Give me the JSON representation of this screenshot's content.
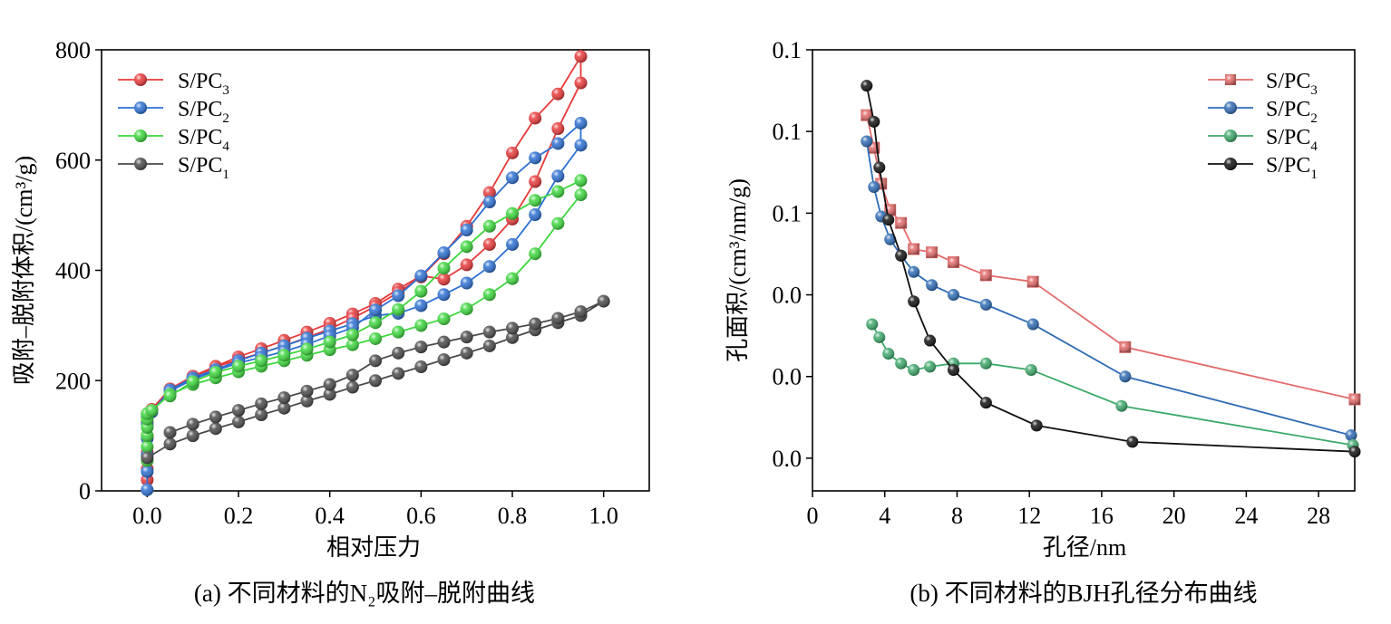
{
  "chart_data": [
    {
      "type": "line",
      "caption": "(a) 不同材料的N₂吸附–脱附曲线",
      "xlabel": "相对压力",
      "ylabel": "吸附–脱附体积/(cm³/g)",
      "xlim": [
        -0.1,
        1.1
      ],
      "ylim": [
        0,
        800
      ],
      "x_ticks": [
        {
          "v": 0.0,
          "label": "0.0"
        },
        {
          "v": 0.2,
          "label": "0.2"
        },
        {
          "v": 0.4,
          "label": "0.4"
        },
        {
          "v": 0.6,
          "label": "0.6"
        },
        {
          "v": 0.8,
          "label": "0.8"
        },
        {
          "v": 1.0,
          "label": "1.0"
        }
      ],
      "y_ticks": [
        {
          "v": 0,
          "label": "0"
        },
        {
          "v": 200,
          "label": "200"
        },
        {
          "v": 400,
          "label": "400"
        },
        {
          "v": 600,
          "label": "600"
        },
        {
          "v": 800,
          "label": "800"
        }
      ],
      "legend": "top-left",
      "marker": "sphere",
      "series": [
        {
          "name_base": "S/PC",
          "name_sub": "3",
          "color": "#e8393a",
          "x": [
            0.0,
            0.0,
            0.0,
            0.0,
            0.0,
            0.0,
            0.01,
            0.05,
            0.1,
            0.15,
            0.2,
            0.25,
            0.3,
            0.35,
            0.4,
            0.45,
            0.5,
            0.55,
            0.6,
            0.65,
            0.7,
            0.75,
            0.8,
            0.85,
            0.9,
            0.95,
            0.95,
            0.9,
            0.85,
            0.8,
            0.75,
            0.7,
            0.65,
            0.6,
            0.55,
            0.5,
            0.45,
            0.4,
            0.35,
            0.3,
            0.25,
            0.2,
            0.15,
            0.1,
            0.05
          ],
          "y": [
            20,
            40,
            70,
            100,
            125,
            140,
            148,
            185,
            208,
            226,
            243,
            258,
            273,
            288,
            304,
            321,
            340,
            366,
            390,
            384,
            410,
            447,
            493,
            561,
            657,
            740,
            788,
            720,
            676,
            613,
            541,
            480,
            430,
            388,
            360,
            335,
            313,
            294,
            278,
            263,
            250,
            238,
            225,
            205,
            184
          ]
        },
        {
          "name_base": "S/PC",
          "name_sub": "2",
          "color": "#2d70d3",
          "x": [
            0.0,
            0.0,
            0.0,
            0.0,
            0.0,
            0.0,
            0.01,
            0.05,
            0.1,
            0.15,
            0.2,
            0.25,
            0.3,
            0.35,
            0.4,
            0.45,
            0.5,
            0.55,
            0.6,
            0.65,
            0.7,
            0.75,
            0.8,
            0.85,
            0.9,
            0.95,
            0.95,
            0.9,
            0.85,
            0.8,
            0.75,
            0.7,
            0.65,
            0.6,
            0.55,
            0.5,
            0.45,
            0.4,
            0.35,
            0.3,
            0.25,
            0.2,
            0.15,
            0.1,
            0.05
          ],
          "y": [
            2,
            35,
            65,
            95,
            120,
            135,
            143,
            183,
            205,
            220,
            236,
            250,
            263,
            277,
            290,
            303,
            318,
            322,
            336,
            356,
            377,
            407,
            447,
            501,
            571,
            627,
            667,
            630,
            604,
            568,
            524,
            473,
            432,
            390,
            354,
            328,
            296,
            281,
            266,
            253,
            242,
            232,
            218,
            202,
            181
          ]
        },
        {
          "name_base": "S/PC",
          "name_sub": "4",
          "color": "#3dd73d",
          "x": [
            0.0,
            0.0,
            0.0,
            0.0,
            0.0,
            0.0,
            0.01,
            0.05,
            0.1,
            0.15,
            0.2,
            0.25,
            0.3,
            0.35,
            0.4,
            0.45,
            0.5,
            0.55,
            0.6,
            0.65,
            0.7,
            0.75,
            0.8,
            0.85,
            0.9,
            0.95,
            0.95,
            0.9,
            0.85,
            0.8,
            0.75,
            0.7,
            0.65,
            0.6,
            0.55,
            0.5,
            0.45,
            0.4,
            0.35,
            0.3,
            0.25,
            0.2,
            0.15,
            0.1,
            0.05
          ],
          "y": [
            55,
            80,
            100,
            115,
            130,
            140,
            146,
            175,
            193,
            205,
            216,
            226,
            236,
            246,
            256,
            265,
            276,
            288,
            300,
            312,
            330,
            356,
            385,
            430,
            485,
            537,
            563,
            543,
            527,
            503,
            480,
            443,
            404,
            362,
            329,
            305,
            283,
            270,
            257,
            246,
            236,
            226,
            215,
            198,
            172
          ]
        },
        {
          "name_base": "S/PC",
          "name_sub": "1",
          "color": "#4a4a4a",
          "x": [
            0.0,
            0.05,
            0.1,
            0.15,
            0.2,
            0.25,
            0.3,
            0.35,
            0.4,
            0.45,
            0.5,
            0.55,
            0.6,
            0.65,
            0.7,
            0.75,
            0.8,
            0.85,
            0.9,
            0.95,
            1.0,
            0.95,
            0.9,
            0.85,
            0.8,
            0.75,
            0.7,
            0.65,
            0.6,
            0.55,
            0.5,
            0.45,
            0.4,
            0.35,
            0.3,
            0.25,
            0.2,
            0.15,
            0.1,
            0.05
          ],
          "y": [
            60,
            85,
            100,
            113,
            125,
            138,
            150,
            163,
            175,
            188,
            200,
            213,
            225,
            238,
            250,
            263,
            278,
            292,
            305,
            318,
            344,
            325,
            313,
            303,
            295,
            288,
            279,
            270,
            261,
            250,
            236,
            210,
            193,
            181,
            169,
            158,
            146,
            134,
            121,
            106
          ]
        }
      ]
    },
    {
      "type": "line",
      "caption": "(b) 不同材料的BJH孔径分布曲线",
      "xlabel": "孔径/nm",
      "ylabel": "孔面积/(cm³/nm/g)",
      "xlim": [
        0,
        30
      ],
      "ylim": [
        -0.01,
        0.125
      ],
      "x_ticks": [
        {
          "v": 0,
          "label": "0"
        },
        {
          "v": 4,
          "label": "4"
        },
        {
          "v": 8,
          "label": "8"
        },
        {
          "v": 12,
          "label": "12"
        },
        {
          "v": 16,
          "label": "16"
        },
        {
          "v": 20,
          "label": "20"
        },
        {
          "v": 24,
          "label": "24"
        },
        {
          "v": 28,
          "label": "28"
        }
      ],
      "y_ticks": [
        {
          "v": 0.0,
          "label": "0.0"
        },
        {
          "v": 0.025,
          "label": "0.0"
        },
        {
          "v": 0.05,
          "label": "0.0"
        },
        {
          "v": 0.075,
          "label": "0.1"
        },
        {
          "v": 0.1,
          "label": "0.1"
        },
        {
          "v": 0.125,
          "label": "0.1"
        }
      ],
      "legend": "top-right",
      "series": [
        {
          "name_base": "S/PC",
          "name_sub": "3",
          "color": "#e36a6a",
          "marker": "square",
          "x": [
            3.0,
            3.4,
            3.8,
            4.3,
            4.9,
            5.6,
            6.6,
            7.8,
            9.6,
            12.2,
            17.3,
            30.0
          ],
          "y": [
            0.105,
            0.095,
            0.084,
            0.076,
            0.072,
            0.064,
            0.063,
            0.06,
            0.056,
            0.054,
            0.034,
            0.018
          ]
        },
        {
          "name_base": "S/PC",
          "name_sub": "2",
          "color": "#2e6bb4",
          "marker": "sphere",
          "x": [
            3.0,
            3.4,
            3.8,
            4.3,
            4.9,
            5.6,
            6.6,
            7.8,
            9.6,
            12.2,
            17.3,
            29.8
          ],
          "y": [
            0.097,
            0.083,
            0.074,
            0.067,
            0.062,
            0.057,
            0.053,
            0.05,
            0.047,
            0.041,
            0.025,
            0.007
          ]
        },
        {
          "name_base": "S/PC",
          "name_sub": "4",
          "color": "#3da86a",
          "marker": "sphere",
          "x": [
            3.3,
            3.7,
            4.2,
            4.9,
            5.6,
            6.5,
            7.8,
            9.6,
            12.1,
            17.1,
            29.9
          ],
          "y": [
            0.041,
            0.037,
            0.032,
            0.029,
            0.027,
            0.028,
            0.029,
            0.029,
            0.027,
            0.016,
            0.004
          ]
        },
        {
          "name_base": "S/PC",
          "name_sub": "1",
          "color": "#111111",
          "marker": "sphere",
          "x": [
            3.0,
            3.4,
            3.7,
            4.2,
            4.9,
            5.6,
            6.5,
            7.8,
            9.6,
            12.4,
            17.7,
            30.0
          ],
          "y": [
            0.114,
            0.103,
            0.089,
            0.073,
            0.062,
            0.048,
            0.036,
            0.027,
            0.017,
            0.01,
            0.005,
            0.002
          ]
        }
      ]
    }
  ]
}
